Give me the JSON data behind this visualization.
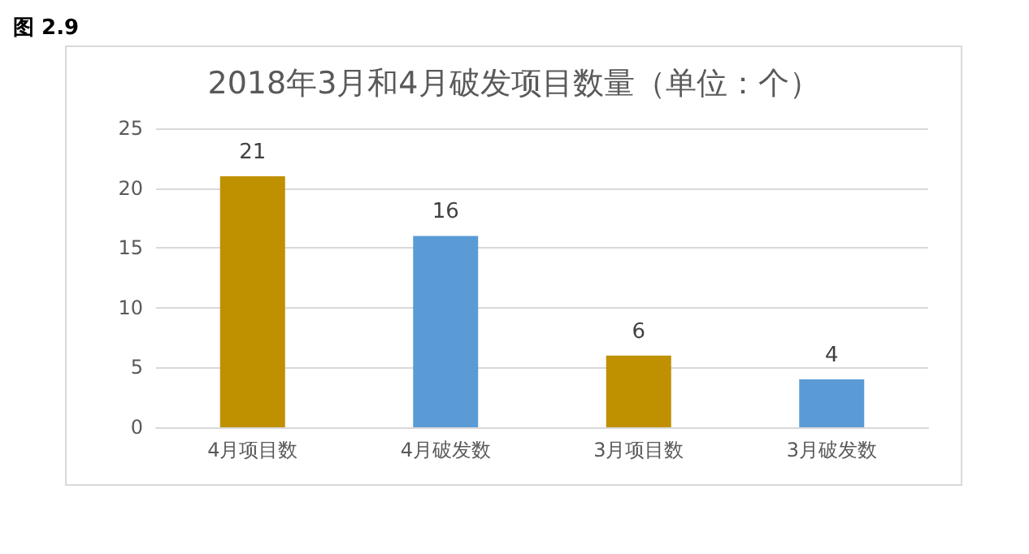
{
  "chart_data": {
    "type": "bar",
    "title": "2018年3月和4月破发项目数量（单位：个）",
    "annotations": [
      "图 2.9"
    ],
    "categories": [
      "4月项目数",
      "4月破发数",
      "3月项目数",
      "3月破发数"
    ],
    "values": [
      21,
      16,
      6,
      4
    ],
    "colors": [
      "#bf9000",
      "#5b9bd5",
      "#bf9000",
      "#5b9bd5"
    ],
    "ylim": [
      0,
      25
    ],
    "yticks": [
      0,
      5,
      10,
      15,
      20,
      25
    ],
    "grid": "y",
    "data_labels": true
  }
}
